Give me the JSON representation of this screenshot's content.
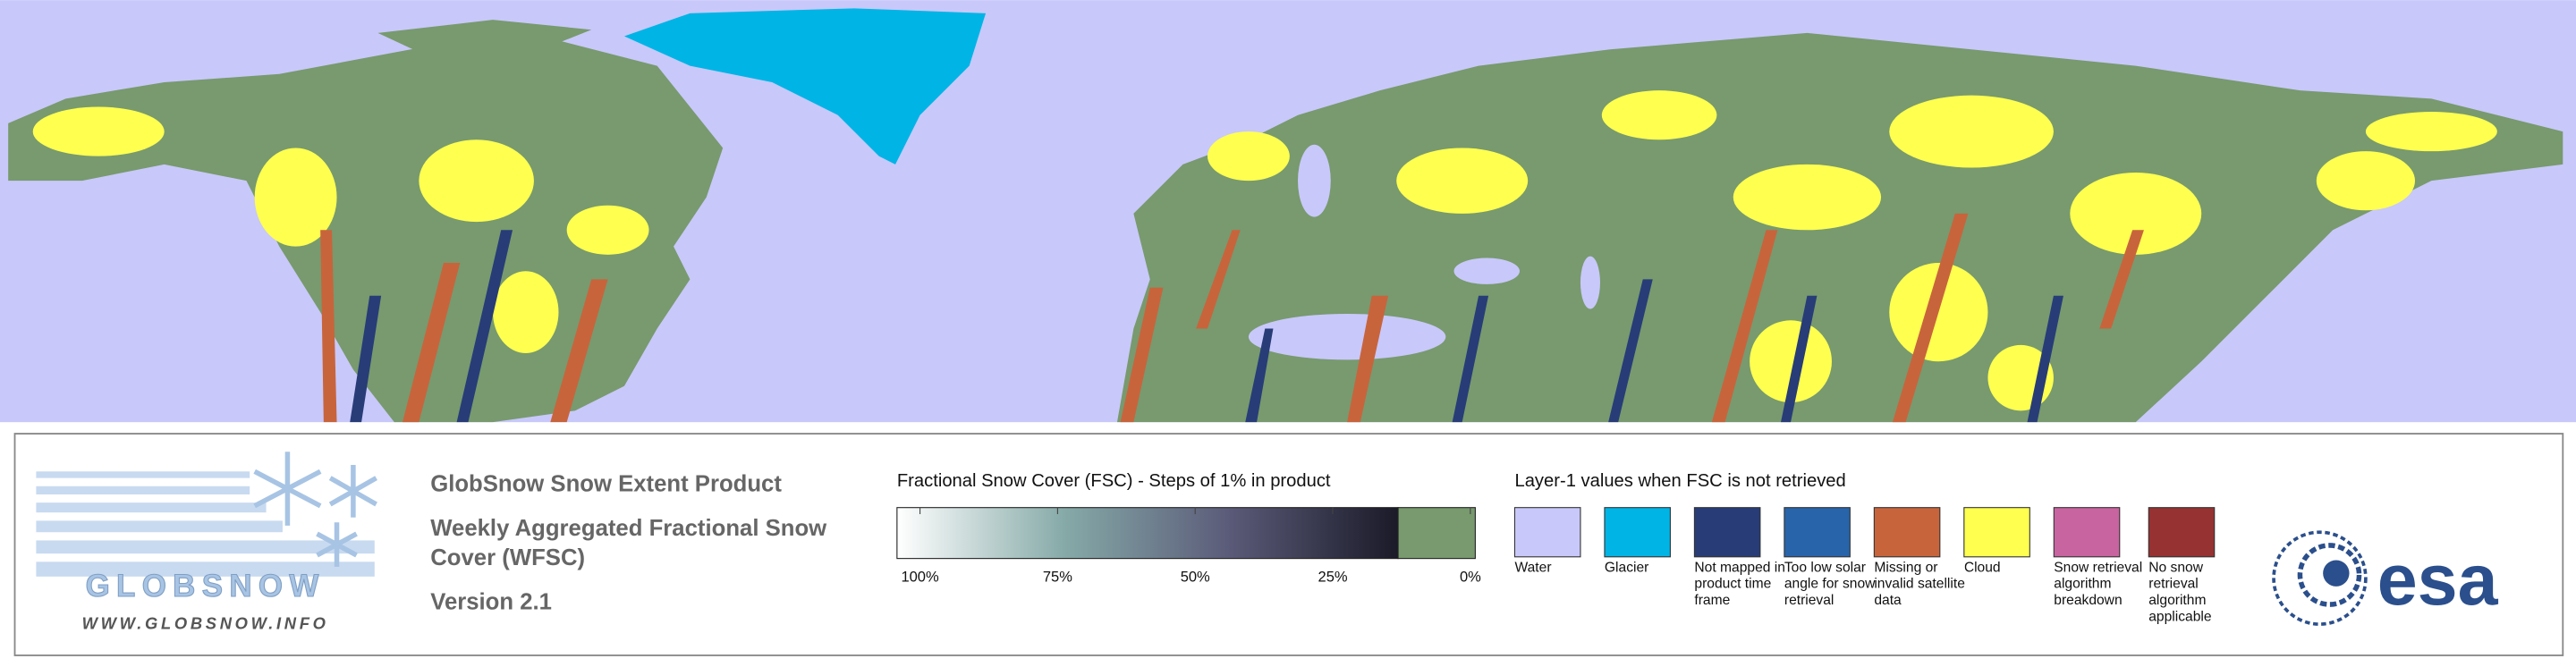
{
  "logo": {
    "name": "GLOBSNOW",
    "url": "WWW.GLOBSNOW.INFO"
  },
  "product": {
    "title": "GlobSnow Snow Extent Product",
    "subtitle": "Weekly Aggregated Fractional Snow Cover (WFSC)",
    "version": "Version 2.1"
  },
  "colorbar": {
    "title": "Fractional Snow Cover (FSC) - Steps of 1% in product",
    "ticks": [
      {
        "value": 100,
        "label": "100%"
      },
      {
        "value": 75,
        "label": "75%"
      },
      {
        "value": 50,
        "label": "50%"
      },
      {
        "value": 25,
        "label": "25%"
      },
      {
        "value": 0,
        "label": "0%"
      }
    ],
    "gradient_colors": [
      "#ffffff",
      "#86aaa8",
      "#5a5a78",
      "#1a1a28"
    ],
    "no_snow_color": "#789a6e"
  },
  "layer1": {
    "title": "Layer-1 values when FSC is not retrieved",
    "items": [
      {
        "label": "Water",
        "color": "#c8c8fa"
      },
      {
        "label": "Glacier",
        "color": "#00b4e6"
      },
      {
        "label": "Not mapped in product time frame",
        "color": "#283c78"
      },
      {
        "label": "Too low solar angle for snow retrieval",
        "color": "#2864aa"
      },
      {
        "label": "Missing or invalid satellite data",
        "color": "#c8643c"
      },
      {
        "label": "Cloud",
        "color": "#ffff50"
      },
      {
        "label": "Snow retrieval algorithm breakdown",
        "color": "#c864a0"
      },
      {
        "label": "No snow retrieval algorithm applicable",
        "color": "#963232"
      }
    ]
  },
  "esa": "esa"
}
